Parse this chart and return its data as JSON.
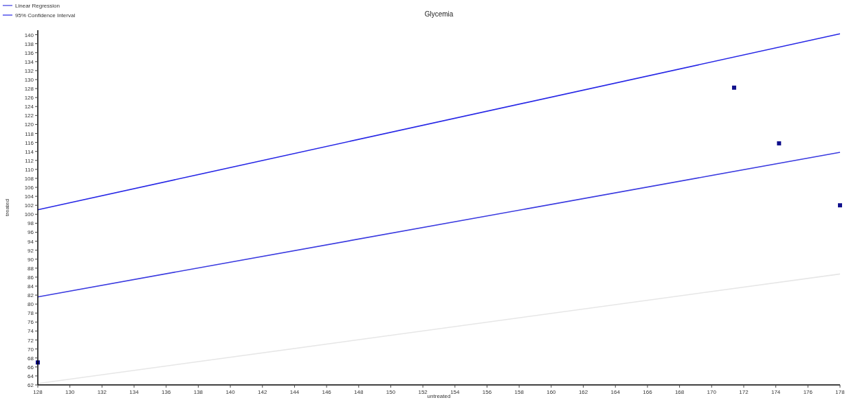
{
  "chart_data": {
    "type": "scatter",
    "title": "Glycemia",
    "xlabel": "untreated",
    "ylabel": "treated",
    "xlim": [
      128,
      178
    ],
    "ylim": [
      62,
      141
    ],
    "xticks": [
      128,
      130,
      132,
      134,
      136,
      138,
      140,
      142,
      144,
      146,
      148,
      150,
      152,
      154,
      156,
      158,
      160,
      162,
      164,
      166,
      168,
      170,
      172,
      174,
      176,
      178
    ],
    "yticks": [
      62,
      64,
      66,
      68,
      70,
      72,
      74,
      76,
      78,
      80,
      82,
      84,
      86,
      88,
      90,
      92,
      94,
      96,
      98,
      100,
      102,
      104,
      106,
      108,
      110,
      112,
      114,
      116,
      118,
      120,
      122,
      124,
      126,
      128,
      130,
      132,
      134,
      136,
      138,
      140
    ],
    "legend": "top left",
    "grid": false,
    "series": [
      {
        "marker": "square",
        "color": "#10108c",
        "x": [
          128,
          171.4,
          174.2,
          178
        ],
        "values": [
          67,
          128.2,
          115.8,
          102
        ]
      },
      {
        "type": "line",
        "name": "Linear Regression",
        "color": "#3a3ae0",
        "x": [
          128,
          178
        ],
        "values": [
          81.6,
          113.8
        ]
      },
      {
        "type": "line",
        "name": "95% Confidence Interval",
        "color": "#2626e6",
        "x": [
          128,
          178
        ],
        "values": [
          101,
          140.2
        ]
      },
      {
        "type": "line",
        "color": "#e6e6e6",
        "x": [
          128,
          178
        ],
        "values": [
          62.3,
          86.7
        ]
      }
    ]
  }
}
